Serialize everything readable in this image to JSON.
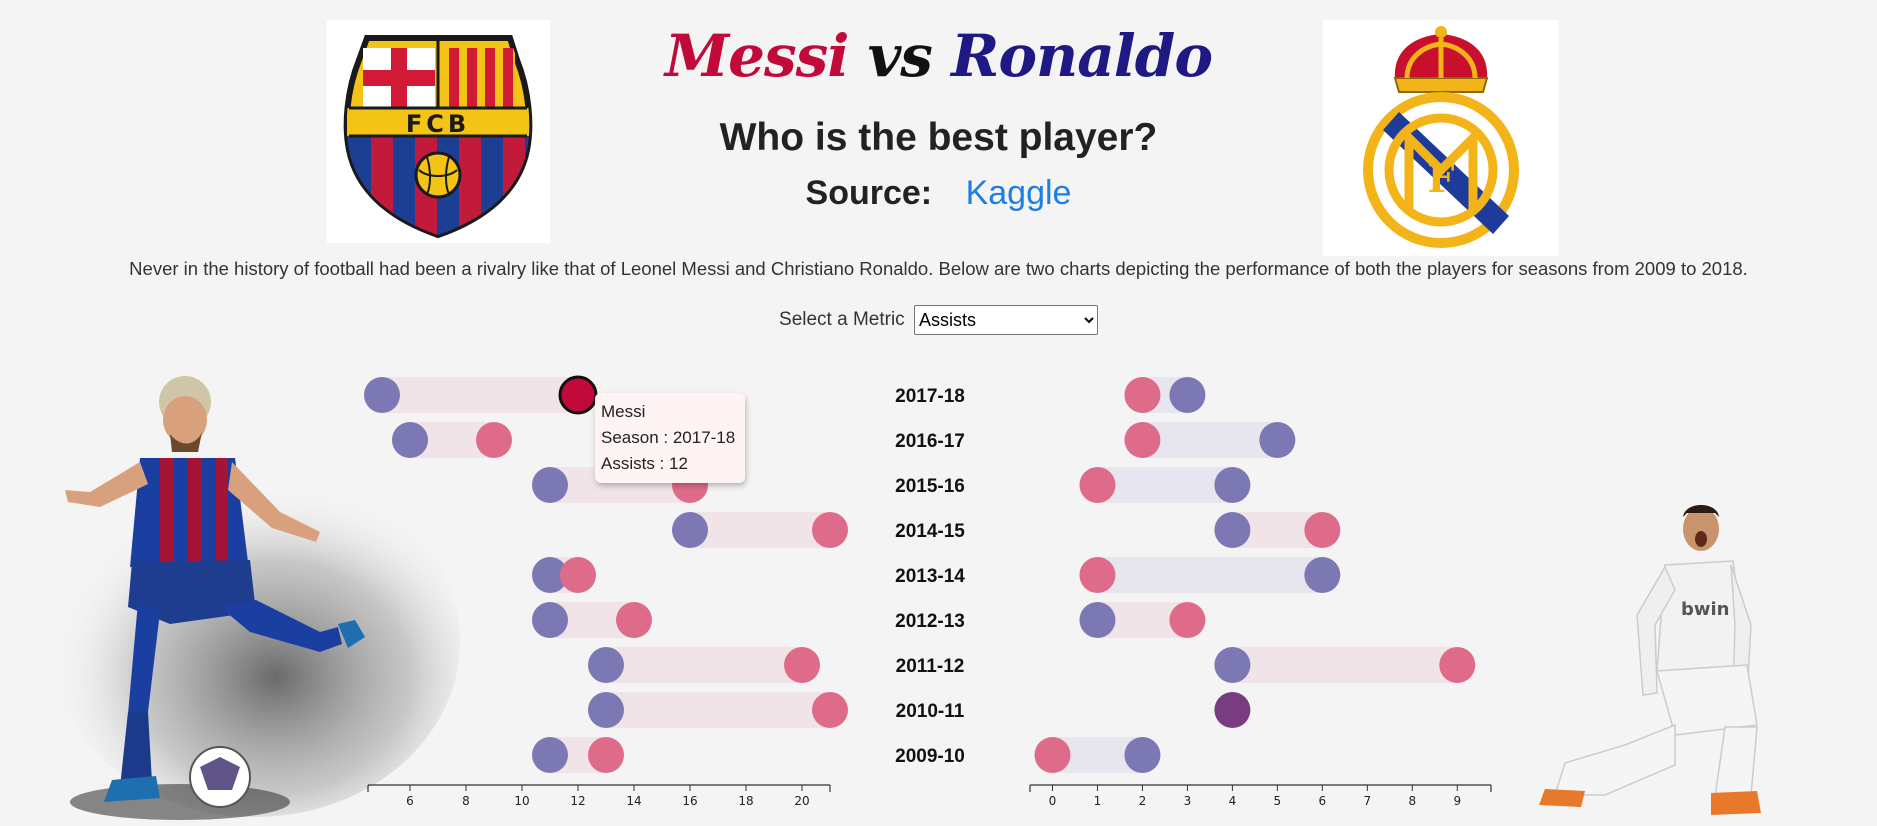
{
  "header": {
    "title_player1": "Messi",
    "title_vs": "vs",
    "title_player2": "Ronaldo",
    "subtitle": "Who is the best player?",
    "source_label": "Source:",
    "source_link": "Kaggle",
    "logo_left_text": "FCB"
  },
  "description": "Never in the history of football had been a rivalry like that of Leonel Messi and Christiano Ronaldo. Below are two charts depicting the performance of both the players for seasons from 2009 to 2018.",
  "metric": {
    "label": "Select a Metric",
    "selected": "Assists"
  },
  "tooltip": {
    "player": "Messi",
    "season_line": "Season : 2017-18",
    "value_line": "Assists : 12"
  },
  "colors": {
    "messi": "#c1093a",
    "ronaldo": "#1f1983",
    "messi_dot": "#df6b8a",
    "ronaldo_dot": "#7c78b4",
    "overlap_dot": "#7a3c80",
    "range_messi_lead": "#f1e4e8",
    "range_ronaldo_lead": "#e7e5ee",
    "link": "#1e7ee6"
  },
  "chart_data": [
    {
      "type": "dumbbell",
      "metric": "Assists",
      "categories": [
        "2017-18",
        "2016-17",
        "2015-16",
        "2014-15",
        "2013-14",
        "2012-13",
        "2011-12",
        "2010-11",
        "2009-10"
      ],
      "series": [
        {
          "name": "Messi",
          "values": [
            12,
            9,
            16,
            21,
            12,
            14,
            20,
            21,
            13
          ]
        },
        {
          "name": "Ronaldo",
          "values": [
            5,
            6,
            11,
            16,
            11,
            11,
            13,
            13,
            11
          ]
        }
      ],
      "xticks": [
        6,
        8,
        10,
        12,
        14,
        16,
        18,
        20
      ],
      "xlim": [
        4.5,
        21
      ],
      "highlighted": {
        "series": "Messi",
        "category": "2017-18"
      }
    },
    {
      "type": "dumbbell",
      "metric": "Assists",
      "categories": [
        "2017-18",
        "2016-17",
        "2015-16",
        "2014-15",
        "2013-14",
        "2012-13",
        "2011-12",
        "2010-11",
        "2009-10"
      ],
      "series": [
        {
          "name": "Messi",
          "values": [
            2,
            2,
            1,
            6,
            1,
            3,
            9,
            4,
            0
          ]
        },
        {
          "name": "Ronaldo",
          "values": [
            3,
            5,
            4,
            4,
            6,
            1,
            4,
            4,
            2
          ]
        }
      ],
      "xticks": [
        0,
        1,
        2,
        3,
        4,
        5,
        6,
        7,
        8,
        9
      ],
      "xlim": [
        -0.5,
        9.75
      ]
    }
  ]
}
